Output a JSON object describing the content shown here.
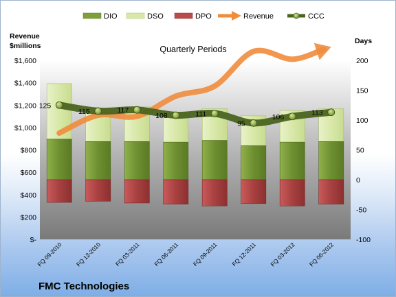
{
  "chart_data": {
    "type": "bar",
    "title": "Quarterly Periods",
    "company": "FMC Technologies",
    "left_axis_title": [
      "Revenue",
      "$millions"
    ],
    "right_axis_title": "Days",
    "left_axis_ticks": [
      "$1,600",
      "$1,400",
      "$1,200",
      "$1,000",
      "$800",
      "$600",
      "$400",
      "$200",
      "$-"
    ],
    "right_axis_ticks": [
      "200",
      "150",
      "100",
      "50",
      "0",
      "-50",
      "-100"
    ],
    "left_ylim": [
      0,
      1600
    ],
    "right_ylim": [
      -100,
      200
    ],
    "categories": [
      "FQ 09-2010",
      "FQ 12-2010",
      "FQ 03-2011",
      "FQ 06-2011",
      "FQ 09-2011",
      "FQ 12-2011",
      "FQ 03-2012",
      "FQ 06-2012"
    ],
    "legend": [
      "DIO",
      "DSO",
      "DPO",
      "Revenue",
      "CCC"
    ],
    "series": [
      {
        "name": "DIO",
        "type": "stacked-bar",
        "axis": "right",
        "values": [
          68,
          64,
          64,
          63,
          66,
          57,
          63,
          64
        ]
      },
      {
        "name": "DSO",
        "type": "stacked-bar",
        "axis": "right",
        "values": [
          93,
          55,
          58,
          50,
          53,
          50,
          53,
          55
        ]
      },
      {
        "name": "DPO",
        "type": "stacked-bar",
        "axis": "right",
        "values": [
          -38,
          -36,
          -39,
          -41,
          -44,
          -40,
          -44,
          -41
        ]
      },
      {
        "name": "Revenue",
        "type": "line",
        "axis": "left",
        "values": [
          950,
          1110,
          1100,
          1280,
          1370,
          1680,
          1610,
          1720
        ]
      },
      {
        "name": "CCC",
        "type": "line",
        "axis": "right",
        "values": [
          125,
          115,
          117,
          108,
          111,
          95,
          106,
          113
        ]
      }
    ],
    "colors": {
      "DIO": "#7f9f3a",
      "DSO": "#d8e8a8",
      "DPO": "#b84a4a",
      "Revenue": "#f08c3c",
      "CCC": "#4a6420",
      "CCC_marker": "#9bb548"
    },
    "grid": false,
    "legend_position": "top"
  }
}
